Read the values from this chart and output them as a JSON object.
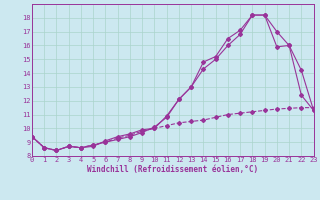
{
  "title": "",
  "xlabel": "Windchill (Refroidissement éolien,°C)",
  "ylabel": "",
  "background_color": "#cce8f0",
  "grid_color": "#aad4cc",
  "line_color": "#993399",
  "x_min": 0,
  "x_max": 23,
  "y_min": 8,
  "y_max": 19,
  "line1_y": [
    9.4,
    8.6,
    8.4,
    8.7,
    8.6,
    8.8,
    9.0,
    9.2,
    9.4,
    9.7,
    10.1,
    10.8,
    12.1,
    13.0,
    14.8,
    15.2,
    16.5,
    17.1,
    18.2,
    18.2,
    17.0,
    16.0,
    14.2,
    11.3
  ],
  "line2_y": [
    9.4,
    8.6,
    8.4,
    8.7,
    8.6,
    8.7,
    9.1,
    9.4,
    9.6,
    9.9,
    10.0,
    10.9,
    12.1,
    13.0,
    14.3,
    15.0,
    16.0,
    16.8,
    18.2,
    18.2,
    15.9,
    16.0,
    12.4,
    11.3
  ],
  "line3_y": [
    9.4,
    8.6,
    8.4,
    8.7,
    8.6,
    8.8,
    9.0,
    9.3,
    9.5,
    9.8,
    10.0,
    10.2,
    10.4,
    10.5,
    10.6,
    10.8,
    11.0,
    11.1,
    11.2,
    11.3,
    11.4,
    11.45,
    11.5,
    11.5
  ],
  "x_ticks": [
    0,
    1,
    2,
    3,
    4,
    5,
    6,
    7,
    8,
    9,
    10,
    11,
    12,
    13,
    14,
    15,
    16,
    17,
    18,
    19,
    20,
    21,
    22,
    23
  ],
  "y_ticks": [
    8,
    9,
    10,
    11,
    12,
    13,
    14,
    15,
    16,
    17,
    18
  ],
  "marker": "D",
  "markersize": 2.0,
  "linewidth": 0.8
}
